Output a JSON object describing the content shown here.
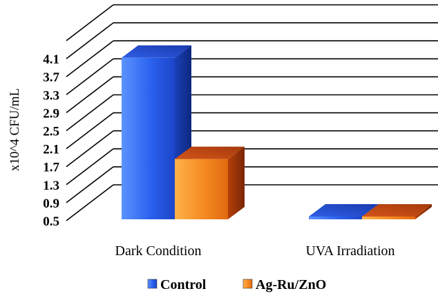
{
  "chart_data": {
    "type": "bar",
    "ylabel": "x10^4 CFU/mL",
    "categories": [
      "Dark Condition",
      "UVA Irradiation"
    ],
    "yticks": [
      "0.5",
      "0.9",
      "1.3",
      "1.7",
      "2.1",
      "2.5",
      "2.9",
      "3.3",
      "3.7",
      "4.1"
    ],
    "ylim": [
      0.5,
      4.5
    ],
    "grid": true,
    "legend_position": "bottom",
    "series": [
      {
        "name": "Control",
        "values": [
          4.12,
          0.52
        ],
        "color": "#1e50e6"
      },
      {
        "name": "Ag-Ru/ZnO",
        "values": [
          1.87,
          0.51
        ],
        "color": "#f0701e"
      }
    ]
  }
}
